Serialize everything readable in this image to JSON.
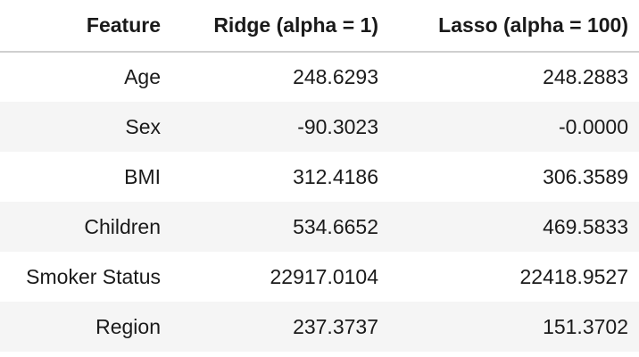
{
  "table": {
    "headers": [
      "Feature",
      "Ridge (alpha = 1)",
      "Lasso (alpha = 100)"
    ],
    "rows": [
      [
        "Age",
        "248.6293",
        "248.2883"
      ],
      [
        "Sex",
        "-90.3023",
        "-0.0000"
      ],
      [
        "BMI",
        "312.4186",
        "306.3589"
      ],
      [
        "Children",
        "534.6652",
        "469.5833"
      ],
      [
        "Smoker Status",
        "22917.0104",
        "22418.9527"
      ],
      [
        "Region",
        "237.3737",
        "151.3702"
      ]
    ]
  },
  "chart_data": {
    "type": "table",
    "columns": [
      "Feature",
      "Ridge (alpha = 1)",
      "Lasso (alpha = 100)"
    ],
    "rows": [
      {
        "Feature": "Age",
        "Ridge (alpha = 1)": 248.6293,
        "Lasso (alpha = 100)": 248.2883
      },
      {
        "Feature": "Sex",
        "Ridge (alpha = 1)": -90.3023,
        "Lasso (alpha = 100)": -0.0
      },
      {
        "Feature": "BMI",
        "Ridge (alpha = 1)": 312.4186,
        "Lasso (alpha = 100)": 306.3589
      },
      {
        "Feature": "Children",
        "Ridge (alpha = 1)": 534.6652,
        "Lasso (alpha = 100)": 469.5833
      },
      {
        "Feature": "Smoker Status",
        "Ridge (alpha = 1)": 22917.0104,
        "Lasso (alpha = 100)": 22418.9527
      },
      {
        "Feature": "Region",
        "Ridge (alpha = 1)": 237.3737,
        "Lasso (alpha = 100)": 151.3702
      }
    ]
  },
  "colors": {
    "text": "#1a1a1a",
    "stripe": "#f5f5f5",
    "header_rule": "#cfcfcf"
  }
}
